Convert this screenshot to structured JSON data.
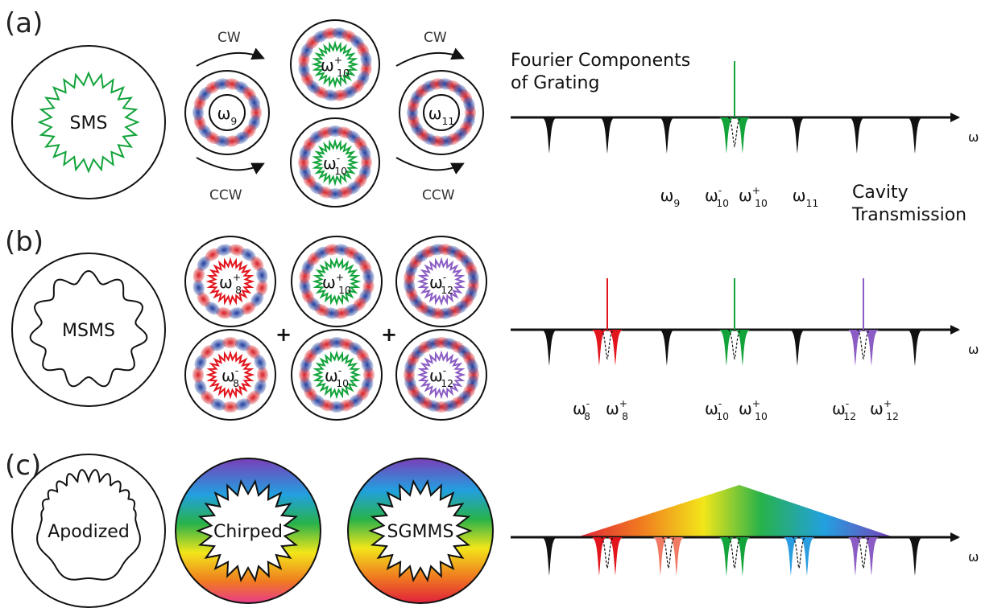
{
  "panels": {
    "a": "(a)",
    "b": "(b)",
    "c": "(c)"
  },
  "labels": {
    "sms": "SMS",
    "msms": "MSMS",
    "apodized": "Apodized",
    "chirped": "Chirped",
    "sgmms": "SGMMS",
    "cw": "CW",
    "ccw": "CCW",
    "plus": "+",
    "omega_axis": "ω",
    "fourier": [
      "Fourier Components",
      "of Grating"
    ],
    "cavity": [
      "Cavity",
      "Transmission"
    ]
  },
  "ring_labels": {
    "w9": {
      "base": "ω",
      "sub": "9",
      "sup": ""
    },
    "w11": {
      "base": "ω",
      "sub": "11",
      "sup": ""
    },
    "w10p": {
      "base": "ω",
      "sub": "10",
      "sup": "+"
    },
    "w10m": {
      "base": "ω",
      "sub": "10",
      "sup": "-"
    },
    "w8p": {
      "base": "ω",
      "sub": "8",
      "sup": "+"
    },
    "w8m": {
      "base": "ω",
      "sub": "8",
      "sup": "-"
    },
    "w12m_top": {
      "base": "ω",
      "sub": "12",
      "sup": "-"
    },
    "w12m_bot": {
      "base": "ω",
      "sub": "12",
      "sup": "-"
    }
  },
  "spectrum_labels": {
    "a": [
      {
        "base": "ω",
        "sub": "9",
        "sup": ""
      },
      {
        "base": "ω",
        "sub": "10",
        "sup": "-"
      },
      {
        "base": "ω",
        "sub": "10",
        "sup": "+"
      },
      {
        "base": "ω",
        "sub": "11",
        "sup": ""
      }
    ],
    "b": [
      {
        "base": "ω",
        "sub": "8",
        "sup": "-"
      },
      {
        "base": "ω",
        "sub": "8",
        "sup": "+"
      },
      {
        "base": "ω",
        "sub": "10",
        "sup": "-"
      },
      {
        "base": "ω",
        "sub": "10",
        "sup": "+"
      },
      {
        "base": "ω",
        "sub": "12",
        "sup": "-"
      },
      {
        "base": "ω",
        "sub": "12",
        "sup": "+"
      }
    ]
  },
  "colors": {
    "green": "#12a33a",
    "red": "#e2141c",
    "purple": "#8a5cc4",
    "salmon": "#f07a63",
    "blue": "#2a9de0",
    "black": "#111111",
    "mode_red": "#d81e24",
    "mode_blue": "#1f3d9e"
  }
}
